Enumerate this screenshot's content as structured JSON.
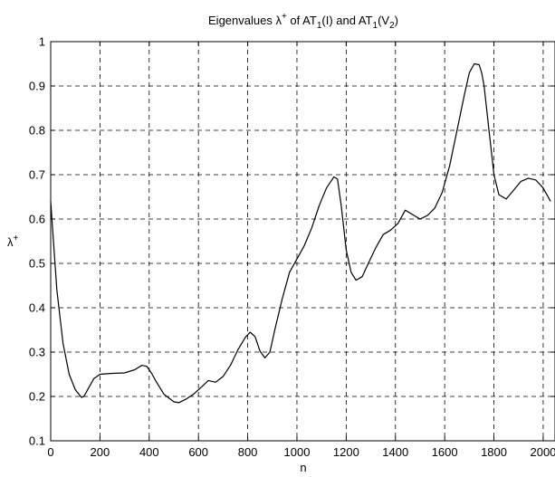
{
  "chart_data": {
    "type": "line",
    "title": {
      "prefix": "Eigenvalues λ",
      "prefix_sup": "+",
      "mid1": " of AT",
      "sub1": "1",
      "mid2": "(I) and AT",
      "sub2": "1",
      "mid3": "(V",
      "sub3": "2",
      "suffix": ")"
    },
    "xlabel": "n",
    "ylabel": {
      "base": "λ",
      "sup": "+"
    },
    "xlim": [
      0,
      2048
    ],
    "ylim": [
      0.1,
      1.0
    ],
    "xticks": [
      0,
      200,
      400,
      600,
      800,
      1000,
      1200,
      1400,
      1600,
      1800,
      2000
    ],
    "xtick_labels": [
      "0",
      "200",
      "400",
      "600",
      "800",
      "1000",
      "1200",
      "1400",
      "1600",
      "1800",
      "2000"
    ],
    "yticks": [
      0.1,
      0.2,
      0.3,
      0.4,
      0.5,
      0.6,
      0.7,
      0.8,
      0.9,
      1.0
    ],
    "ytick_labels": [
      "0.1",
      "0.2",
      "0.3",
      "0.4",
      "0.5",
      "0.6",
      "0.7",
      "0.8",
      "0.9",
      "1"
    ],
    "grid": true,
    "series": [
      {
        "color": "#000000",
        "x": [
          0,
          10,
          25,
          50,
          75,
          100,
          125,
          135,
          150,
          175,
          200,
          250,
          300,
          340,
          370,
          390,
          410,
          430,
          460,
          500,
          520,
          550,
          580,
          610,
          640,
          670,
          700,
          730,
          760,
          790,
          810,
          830,
          850,
          870,
          890,
          910,
          940,
          970,
          1000,
          1030,
          1060,
          1090,
          1120,
          1150,
          1165,
          1180,
          1200,
          1220,
          1240,
          1265,
          1290,
          1320,
          1350,
          1380,
          1410,
          1440,
          1470,
          1500,
          1530,
          1560,
          1590,
          1620,
          1650,
          1680,
          1700,
          1720,
          1740,
          1750,
          1760,
          1780,
          1800,
          1820,
          1850,
          1880,
          1910,
          1940,
          1970,
          2000,
          2030
        ],
        "y": [
          0.64,
          0.56,
          0.44,
          0.32,
          0.25,
          0.215,
          0.198,
          0.2,
          0.215,
          0.24,
          0.25,
          0.252,
          0.253,
          0.26,
          0.27,
          0.268,
          0.252,
          0.232,
          0.205,
          0.188,
          0.186,
          0.194,
          0.205,
          0.22,
          0.236,
          0.232,
          0.245,
          0.27,
          0.305,
          0.333,
          0.345,
          0.335,
          0.302,
          0.287,
          0.3,
          0.35,
          0.42,
          0.48,
          0.51,
          0.54,
          0.58,
          0.63,
          0.67,
          0.695,
          0.69,
          0.63,
          0.53,
          0.48,
          0.462,
          0.47,
          0.5,
          0.535,
          0.565,
          0.575,
          0.59,
          0.62,
          0.61,
          0.6,
          0.608,
          0.625,
          0.66,
          0.72,
          0.8,
          0.88,
          0.93,
          0.95,
          0.948,
          0.93,
          0.9,
          0.8,
          0.7,
          0.655,
          0.645,
          0.665,
          0.685,
          0.692,
          0.688,
          0.67,
          0.64
        ]
      }
    ]
  }
}
